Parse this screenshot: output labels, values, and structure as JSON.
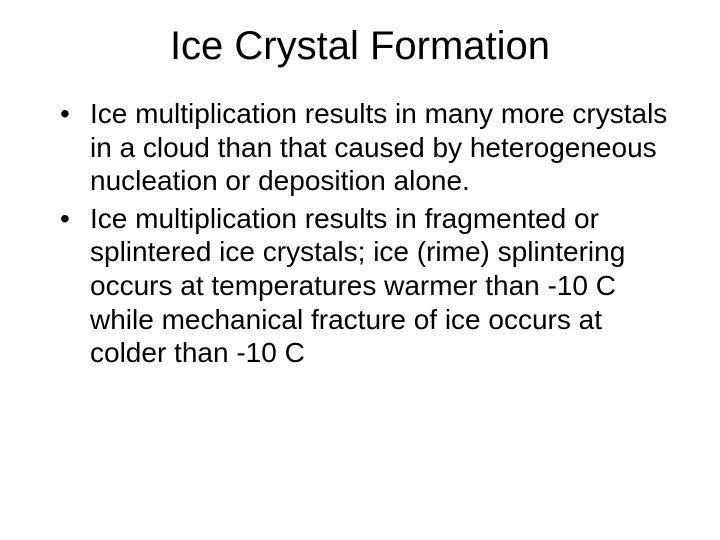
{
  "slide": {
    "title": "Ice Crystal Formation",
    "bullets": [
      "Ice multiplication results in many more crystals in a cloud than that caused by heterogeneous nucleation or deposition alone.",
      "Ice multiplication results in fragmented or splintered ice crystals; ice (rime) splintering occurs at temperatures warmer than -10 C while mechanical fracture of ice occurs at colder than -10 C"
    ],
    "styling": {
      "background_color": "#ffffff",
      "text_color": "#000000",
      "title_fontsize": 40,
      "title_align": "center",
      "title_weight": "normal",
      "body_fontsize": 28,
      "font_family": "Arial",
      "bullet_marker": "•",
      "slide_width": 720,
      "slide_height": 540
    }
  }
}
